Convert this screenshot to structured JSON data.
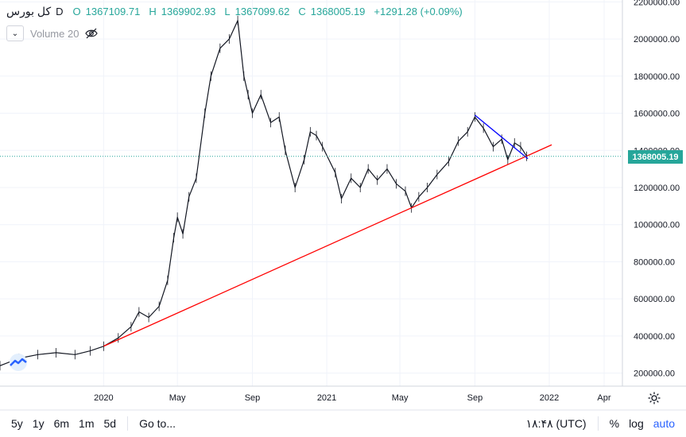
{
  "header": {
    "symbol": "کل بورس",
    "interval": "D",
    "ohlc": [
      {
        "label": "O",
        "value": "1367109.71"
      },
      {
        "label": "H",
        "value": "1369902.93"
      },
      {
        "label": "L",
        "value": "1367099.62"
      },
      {
        "label": "C",
        "value": "1368005.19"
      }
    ],
    "change": "+1291.28 (+0.09%)",
    "volume_label": "Volume 20"
  },
  "current_price": "1368005.19",
  "bottom": {
    "ranges": [
      "5y",
      "1y",
      "6m",
      "1m",
      "5d"
    ],
    "goto": "Go to...",
    "time": "۱۸:۴۸ (UTC)",
    "percent": "%",
    "log": "log",
    "auto": "auto"
  },
  "colors": {
    "up": "#26a69a",
    "down": "#ef5350",
    "candle": "#131722",
    "trend_red": "#ff0000",
    "trend_blue": "#0000ff",
    "accent": "#2962ff"
  },
  "chart_data": {
    "type": "line",
    "title": "",
    "xlabel": "",
    "ylabel": "",
    "ylim": [
      130000,
      2210000
    ],
    "y_ticks": [
      200000,
      400000,
      600000,
      800000,
      1000000,
      1200000,
      1400000,
      1600000,
      1800000,
      2000000,
      2200000
    ],
    "y_tick_labels": [
      "200000.00",
      "400000.00",
      "600000.00",
      "800000.00",
      "1000000.00",
      "1200000.00",
      "1400000.00",
      "1600000.00",
      "1800000.00",
      "2000000.00",
      "2200000.00"
    ],
    "x_ticks": [
      {
        "date": "2020-01-01",
        "label": "2020"
      },
      {
        "date": "2020-05-01",
        "label": "May"
      },
      {
        "date": "2020-09-01",
        "label": "Sep"
      },
      {
        "date": "2021-01-01",
        "label": "2021"
      },
      {
        "date": "2021-05-01",
        "label": "May"
      },
      {
        "date": "2021-09-01",
        "label": "Sep"
      },
      {
        "date": "2022-01-01",
        "label": "2022"
      },
      {
        "date": "2022-04-01",
        "label": "Apr"
      }
    ],
    "xlim": [
      "2019-07-15",
      "2022-05-01"
    ],
    "series": [
      {
        "points": [
          [
            "2019-07-15",
            240000
          ],
          [
            "2019-08-15",
            280000
          ],
          [
            "2019-09-15",
            300000
          ],
          [
            "2019-10-15",
            310000
          ],
          [
            "2019-11-15",
            300000
          ],
          [
            "2019-12-10",
            320000
          ],
          [
            "2020-01-01",
            345000
          ],
          [
            "2020-01-25",
            390000
          ],
          [
            "2020-02-15",
            450000
          ],
          [
            "2020-02-28",
            530000
          ],
          [
            "2020-03-15",
            500000
          ],
          [
            "2020-04-01",
            560000
          ],
          [
            "2020-04-15",
            700000
          ],
          [
            "2020-04-25",
            930000
          ],
          [
            "2020-05-01",
            1040000
          ],
          [
            "2020-05-10",
            950000
          ],
          [
            "2020-05-20",
            1150000
          ],
          [
            "2020-06-01",
            1250000
          ],
          [
            "2020-06-15",
            1600000
          ],
          [
            "2020-06-25",
            1800000
          ],
          [
            "2020-07-10",
            1950000
          ],
          [
            "2020-07-25",
            2000000
          ],
          [
            "2020-08-08",
            2100000
          ],
          [
            "2020-08-18",
            1800000
          ],
          [
            "2020-08-25",
            1700000
          ],
          [
            "2020-09-01",
            1600000
          ],
          [
            "2020-09-15",
            1700000
          ],
          [
            "2020-10-01",
            1550000
          ],
          [
            "2020-10-15",
            1580000
          ],
          [
            "2020-10-25",
            1400000
          ],
          [
            "2020-11-10",
            1200000
          ],
          [
            "2020-11-25",
            1350000
          ],
          [
            "2020-12-05",
            1500000
          ],
          [
            "2020-12-15",
            1480000
          ],
          [
            "2020-12-25",
            1420000
          ],
          [
            "2021-01-15",
            1280000
          ],
          [
            "2021-01-25",
            1140000
          ],
          [
            "2021-02-10",
            1250000
          ],
          [
            "2021-02-25",
            1200000
          ],
          [
            "2021-03-10",
            1300000
          ],
          [
            "2021-03-25",
            1240000
          ],
          [
            "2021-04-10",
            1300000
          ],
          [
            "2021-04-25",
            1220000
          ],
          [
            "2021-05-10",
            1180000
          ],
          [
            "2021-05-20",
            1090000
          ],
          [
            "2021-06-01",
            1150000
          ],
          [
            "2021-06-15",
            1200000
          ],
          [
            "2021-07-01",
            1270000
          ],
          [
            "2021-07-20",
            1340000
          ],
          [
            "2021-08-05",
            1450000
          ],
          [
            "2021-08-20",
            1500000
          ],
          [
            "2021-09-01",
            1580000
          ],
          [
            "2021-09-15",
            1520000
          ],
          [
            "2021-10-01",
            1420000
          ],
          [
            "2021-10-15",
            1460000
          ],
          [
            "2021-10-25",
            1350000
          ],
          [
            "2021-11-05",
            1440000
          ],
          [
            "2021-11-15",
            1420000
          ],
          [
            "2021-11-25",
            1368005
          ]
        ]
      }
    ],
    "trendlines": [
      {
        "color": "red",
        "from": [
          "2020-01-01",
          345000
        ],
        "to": [
          "2022-01-05",
          1430000
        ]
      },
      {
        "color": "blue",
        "from": [
          "2021-09-01",
          1590000
        ],
        "to": [
          "2021-11-27",
          1355000
        ]
      }
    ],
    "last_price": 1368005.19
  }
}
